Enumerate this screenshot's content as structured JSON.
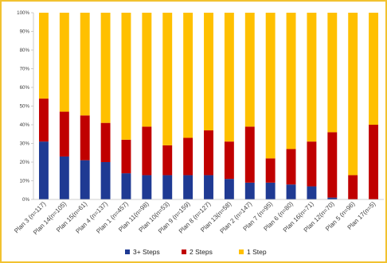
{
  "colors": {
    "steps3plus": "#1f3a93",
    "steps2": "#c00000",
    "step1": "#ffc000",
    "frame": "#f2c230",
    "gridline": "#d9d9d9"
  },
  "chart_data": {
    "type": "bar",
    "stacked": true,
    "title": "",
    "xlabel": "",
    "ylabel": "",
    "ylim": [
      0,
      100
    ],
    "yticks": [
      "0%",
      "10%",
      "20%",
      "30%",
      "40%",
      "50%",
      "60%",
      "70%",
      "80%",
      "90%",
      "100%"
    ],
    "grid": false,
    "legend_position": "bottom",
    "categories": [
      "Plan 3 (n=117)",
      "Plan 14(n=105)",
      "Plan 15(n=61)",
      "Plan 4 (n=137)",
      "Plan 1 (n=457)",
      "Plan 11(n=98)",
      "Plan 10(n=53)",
      "Plan 9 (n=159)",
      "Plan 8 (n=127)",
      "Plan 13(n=58)",
      "Plan 2 (n=147)",
      "Plan 7 (n=95)",
      "Plan 6 (n=80)",
      "Plan 16(n=71)",
      "Plan 12(n=70)",
      "Plan 5 (n=96)",
      "Plan 17(n=5)"
    ],
    "series": [
      {
        "name": "3+ Steps",
        "values": [
          31,
          23,
          21,
          20,
          14,
          13,
          13,
          13,
          13,
          11,
          9,
          9,
          8,
          7,
          1,
          0,
          0
        ]
      },
      {
        "name": "2 Steps",
        "values": [
          23,
          24,
          24,
          21,
          18,
          26,
          16,
          20,
          24,
          20,
          30,
          13,
          19,
          24,
          35,
          13,
          40
        ]
      },
      {
        "name": "1 Step",
        "values": [
          46,
          53,
          55,
          59,
          68,
          61,
          71,
          67,
          63,
          69,
          61,
          78,
          73,
          69,
          64,
          87,
          60
        ]
      }
    ]
  }
}
